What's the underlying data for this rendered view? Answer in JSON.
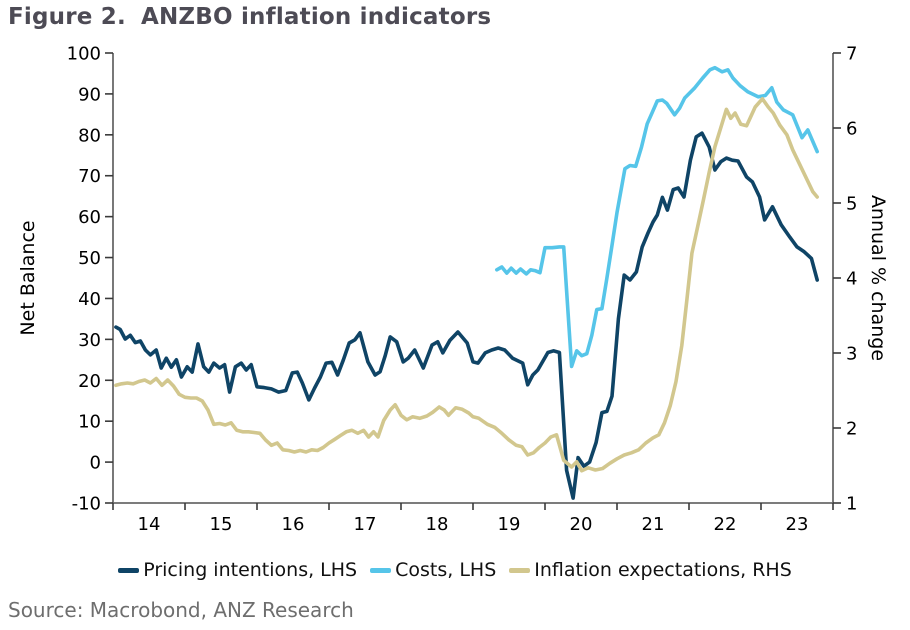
{
  "figure": {
    "label": "Figure 2.",
    "title": "ANZBO inflation indicators"
  },
  "source": {
    "text": "Source: Macrobond, ANZ Research"
  },
  "colors": {
    "title": "#4d4b55",
    "axis_line": "#6a6a6a",
    "tick_mark": "#3a3a3a",
    "tick_text": "#000000",
    "source_text": "#6e6e6e",
    "pricing_intentions": "#0f4466",
    "costs": "#56c5e9",
    "inflation_expectations": "#d2c78e"
  },
  "chart_data": {
    "type": "line",
    "title": "ANZBO inflation indicators",
    "grid": false,
    "legend_position": "bottom",
    "x_axis": {
      "range": [
        2014,
        2024
      ],
      "tick_labels": [
        "14",
        "15",
        "16",
        "17",
        "18",
        "19",
        "20",
        "21",
        "22",
        "23"
      ]
    },
    "y_left": {
      "label": "Net Balance",
      "range": [
        -10,
        100
      ],
      "ticks": [
        100,
        90,
        80,
        70,
        60,
        50,
        40,
        30,
        20,
        10,
        0,
        -10
      ]
    },
    "y_right": {
      "label": "Annual % change",
      "range": [
        1,
        7
      ],
      "ticks": [
        7,
        6,
        5,
        4,
        3,
        2,
        1
      ]
    },
    "series": [
      {
        "name": "Pricing intentions, LHS",
        "axis": "left",
        "color": "#0f4466",
        "points": [
          [
            2014.04,
            33
          ],
          [
            2014.1,
            32.4
          ],
          [
            2014.17,
            30.1
          ],
          [
            2014.24,
            31
          ],
          [
            2014.31,
            29.2
          ],
          [
            2014.38,
            29.6
          ],
          [
            2014.45,
            27.4
          ],
          [
            2014.52,
            26.2
          ],
          [
            2014.6,
            27.4
          ],
          [
            2014.67,
            23
          ],
          [
            2014.74,
            25.4
          ],
          [
            2014.81,
            23.2
          ],
          [
            2014.88,
            25
          ],
          [
            2014.95,
            20.8
          ],
          [
            2015.03,
            23.3
          ],
          [
            2015.1,
            22
          ],
          [
            2015.18,
            28.9
          ],
          [
            2015.26,
            23.3
          ],
          [
            2015.33,
            22
          ],
          [
            2015.4,
            24.2
          ],
          [
            2015.48,
            23
          ],
          [
            2015.55,
            23.8
          ],
          [
            2015.62,
            17.1
          ],
          [
            2015.7,
            23.3
          ],
          [
            2015.78,
            24.2
          ],
          [
            2015.85,
            22.5
          ],
          [
            2015.92,
            23.8
          ],
          [
            2016,
            18.4
          ],
          [
            2016.1,
            18.2
          ],
          [
            2016.2,
            17.9
          ],
          [
            2016.3,
            17.1
          ],
          [
            2016.4,
            17.5
          ],
          [
            2016.49,
            21.8
          ],
          [
            2016.56,
            22
          ],
          [
            2016.63,
            19.3
          ],
          [
            2016.72,
            15.2
          ],
          [
            2016.8,
            18.1
          ],
          [
            2016.88,
            20.8
          ],
          [
            2016.96,
            24.2
          ],
          [
            2017.04,
            24.4
          ],
          [
            2017.12,
            21.3
          ],
          [
            2017.2,
            25
          ],
          [
            2017.28,
            29.1
          ],
          [
            2017.36,
            29.9
          ],
          [
            2017.43,
            31.6
          ],
          [
            2017.54,
            24.5
          ],
          [
            2017.64,
            21.3
          ],
          [
            2017.71,
            22.1
          ],
          [
            2017.78,
            26
          ],
          [
            2017.85,
            30.6
          ],
          [
            2017.94,
            29.4
          ],
          [
            2018.03,
            24.5
          ],
          [
            2018.1,
            25.4
          ],
          [
            2018.19,
            27.4
          ],
          [
            2018.31,
            23
          ],
          [
            2018.43,
            28.6
          ],
          [
            2018.51,
            29.4
          ],
          [
            2018.58,
            26.7
          ],
          [
            2018.68,
            29.8
          ],
          [
            2018.79,
            31.8
          ],
          [
            2018.92,
            29.1
          ],
          [
            2019,
            24.5
          ],
          [
            2019.07,
            24.2
          ],
          [
            2019.17,
            26.7
          ],
          [
            2019.26,
            27.4
          ],
          [
            2019.35,
            27.9
          ],
          [
            2019.44,
            27.4
          ],
          [
            2019.55,
            25.4
          ],
          [
            2019.69,
            24.2
          ],
          [
            2019.76,
            18.9
          ],
          [
            2019.83,
            21.3
          ],
          [
            2019.9,
            22.5
          ],
          [
            2020.04,
            26.8
          ],
          [
            2020.12,
            27.2
          ],
          [
            2020.2,
            26.8
          ],
          [
            2020.3,
            -2
          ],
          [
            2020.39,
            -8.8
          ],
          [
            2020.46,
            1.1
          ],
          [
            2020.54,
            -1
          ],
          [
            2020.62,
            0
          ],
          [
            2020.71,
            4.8
          ],
          [
            2020.79,
            12.1
          ],
          [
            2020.86,
            12.4
          ],
          [
            2020.93,
            16.1
          ],
          [
            2021.02,
            35
          ],
          [
            2021.1,
            45.7
          ],
          [
            2021.18,
            44.5
          ],
          [
            2021.27,
            46.5
          ],
          [
            2021.35,
            52.6
          ],
          [
            2021.43,
            56
          ],
          [
            2021.5,
            58.7
          ],
          [
            2021.56,
            60.4
          ],
          [
            2021.63,
            64.7
          ],
          [
            2021.7,
            61.6
          ],
          [
            2021.78,
            66.6
          ],
          [
            2021.85,
            67
          ],
          [
            2021.93,
            64.8
          ],
          [
            2022.02,
            73.8
          ],
          [
            2022.1,
            79.5
          ],
          [
            2022.18,
            80.4
          ],
          [
            2022.28,
            77
          ],
          [
            2022.36,
            71.4
          ],
          [
            2022.44,
            73.4
          ],
          [
            2022.52,
            74.3
          ],
          [
            2022.6,
            73.8
          ],
          [
            2022.68,
            73.6
          ],
          [
            2022.8,
            69.7
          ],
          [
            2022.88,
            68.5
          ],
          [
            2022.98,
            64.8
          ],
          [
            2023.05,
            59.2
          ],
          [
            2023.16,
            62.4
          ],
          [
            2023.28,
            58
          ],
          [
            2023.4,
            55
          ],
          [
            2023.5,
            52.6
          ],
          [
            2023.6,
            51.4
          ],
          [
            2023.7,
            49.8
          ],
          [
            2023.78,
            44.5
          ]
        ]
      },
      {
        "name": "Costs, LHS",
        "axis": "left",
        "color": "#56c5e9",
        "points": [
          [
            2019.33,
            47
          ],
          [
            2019.4,
            47.7
          ],
          [
            2019.47,
            46.2
          ],
          [
            2019.53,
            47.4
          ],
          [
            2019.6,
            46.2
          ],
          [
            2019.66,
            47.2
          ],
          [
            2019.74,
            46
          ],
          [
            2019.8,
            47
          ],
          [
            2019.86,
            46.8
          ],
          [
            2019.93,
            46.3
          ],
          [
            2020,
            52.4
          ],
          [
            2020.1,
            52.4
          ],
          [
            2020.2,
            52.6
          ],
          [
            2020.26,
            52.6
          ],
          [
            2020.37,
            23.4
          ],
          [
            2020.44,
            27.2
          ],
          [
            2020.51,
            26
          ],
          [
            2020.58,
            26.5
          ],
          [
            2020.65,
            31
          ],
          [
            2020.72,
            37.3
          ],
          [
            2020.79,
            37.5
          ],
          [
            2020.86,
            45
          ],
          [
            2020.93,
            53
          ],
          [
            2021,
            61
          ],
          [
            2021.11,
            71.7
          ],
          [
            2021.18,
            72.5
          ],
          [
            2021.26,
            72.3
          ],
          [
            2021.34,
            77
          ],
          [
            2021.42,
            82.7
          ],
          [
            2021.49,
            85.5
          ],
          [
            2021.56,
            88.3
          ],
          [
            2021.63,
            88.5
          ],
          [
            2021.69,
            87.7
          ],
          [
            2021.8,
            84.9
          ],
          [
            2021.87,
            86.5
          ],
          [
            2021.94,
            89
          ],
          [
            2022.08,
            91.5
          ],
          [
            2022.19,
            93.9
          ],
          [
            2022.29,
            95.9
          ],
          [
            2022.36,
            96.4
          ],
          [
            2022.46,
            95.4
          ],
          [
            2022.54,
            95.9
          ],
          [
            2022.61,
            93.9
          ],
          [
            2022.71,
            92
          ],
          [
            2022.82,
            90.5
          ],
          [
            2022.96,
            89.3
          ],
          [
            2023.06,
            89.6
          ],
          [
            2023.15,
            91.5
          ],
          [
            2023.22,
            88
          ],
          [
            2023.31,
            86.1
          ],
          [
            2023.44,
            84.9
          ],
          [
            2023.57,
            79.3
          ],
          [
            2023.65,
            81.2
          ],
          [
            2023.78,
            75.9
          ]
        ]
      },
      {
        "name": "Inflation expectations, RHS",
        "axis": "right",
        "color": "#d2c78e",
        "points": [
          [
            2014.04,
            2.57
          ],
          [
            2014.12,
            2.59
          ],
          [
            2014.2,
            2.6
          ],
          [
            2014.28,
            2.59
          ],
          [
            2014.36,
            2.62
          ],
          [
            2014.44,
            2.64
          ],
          [
            2014.52,
            2.6
          ],
          [
            2014.6,
            2.66
          ],
          [
            2014.68,
            2.57
          ],
          [
            2014.76,
            2.64
          ],
          [
            2014.84,
            2.56
          ],
          [
            2014.92,
            2.45
          ],
          [
            2015,
            2.41
          ],
          [
            2015.08,
            2.4
          ],
          [
            2015.16,
            2.4
          ],
          [
            2015.24,
            2.36
          ],
          [
            2015.32,
            2.24
          ],
          [
            2015.4,
            2.05
          ],
          [
            2015.48,
            2.06
          ],
          [
            2015.56,
            2.04
          ],
          [
            2015.64,
            2.07
          ],
          [
            2015.72,
            1.97
          ],
          [
            2015.8,
            1.95
          ],
          [
            2015.88,
            1.95
          ],
          [
            2015.96,
            1.94
          ],
          [
            2016.04,
            1.93
          ],
          [
            2016.12,
            1.84
          ],
          [
            2016.2,
            1.77
          ],
          [
            2016.28,
            1.8
          ],
          [
            2016.36,
            1.71
          ],
          [
            2016.44,
            1.7
          ],
          [
            2016.52,
            1.68
          ],
          [
            2016.6,
            1.7
          ],
          [
            2016.68,
            1.68
          ],
          [
            2016.76,
            1.71
          ],
          [
            2016.84,
            1.7
          ],
          [
            2016.92,
            1.74
          ],
          [
            2017,
            1.8
          ],
          [
            2017.08,
            1.85
          ],
          [
            2017.16,
            1.9
          ],
          [
            2017.24,
            1.95
          ],
          [
            2017.32,
            1.97
          ],
          [
            2017.4,
            1.93
          ],
          [
            2017.48,
            1.97
          ],
          [
            2017.55,
            1.88
          ],
          [
            2017.62,
            1.95
          ],
          [
            2017.68,
            1.88
          ],
          [
            2017.76,
            2.1
          ],
          [
            2017.85,
            2.24
          ],
          [
            2017.92,
            2.31
          ],
          [
            2018,
            2.17
          ],
          [
            2018.08,
            2.11
          ],
          [
            2018.16,
            2.15
          ],
          [
            2018.26,
            2.13
          ],
          [
            2018.36,
            2.16
          ],
          [
            2018.44,
            2.21
          ],
          [
            2018.53,
            2.28
          ],
          [
            2018.6,
            2.24
          ],
          [
            2018.66,
            2.17
          ],
          [
            2018.76,
            2.27
          ],
          [
            2018.85,
            2.25
          ],
          [
            2018.94,
            2.2
          ],
          [
            2019,
            2.15
          ],
          [
            2019.08,
            2.13
          ],
          [
            2019.2,
            2.05
          ],
          [
            2019.3,
            2.01
          ],
          [
            2019.4,
            1.93
          ],
          [
            2019.5,
            1.84
          ],
          [
            2019.6,
            1.77
          ],
          [
            2019.68,
            1.75
          ],
          [
            2019.76,
            1.64
          ],
          [
            2019.84,
            1.67
          ],
          [
            2019.92,
            1.74
          ],
          [
            2020,
            1.8
          ],
          [
            2020.08,
            1.88
          ],
          [
            2020.16,
            1.91
          ],
          [
            2020.26,
            1.57
          ],
          [
            2020.37,
            1.48
          ],
          [
            2020.44,
            1.55
          ],
          [
            2020.51,
            1.43
          ],
          [
            2020.6,
            1.47
          ],
          [
            2020.7,
            1.44
          ],
          [
            2020.8,
            1.46
          ],
          [
            2020.9,
            1.53
          ],
          [
            2021,
            1.59
          ],
          [
            2021.1,
            1.64
          ],
          [
            2021.2,
            1.67
          ],
          [
            2021.3,
            1.71
          ],
          [
            2021.4,
            1.8
          ],
          [
            2021.5,
            1.87
          ],
          [
            2021.58,
            1.91
          ],
          [
            2021.66,
            2.07
          ],
          [
            2021.74,
            2.3
          ],
          [
            2021.82,
            2.62
          ],
          [
            2021.9,
            3.1
          ],
          [
            2021.97,
            3.7
          ],
          [
            2022.04,
            4.33
          ],
          [
            2022.12,
            4.68
          ],
          [
            2022.2,
            5.04
          ],
          [
            2022.28,
            5.41
          ],
          [
            2022.36,
            5.75
          ],
          [
            2022.44,
            6
          ],
          [
            2022.52,
            6.25
          ],
          [
            2022.58,
            6.13
          ],
          [
            2022.64,
            6.2
          ],
          [
            2022.72,
            6.05
          ],
          [
            2022.8,
            6.03
          ],
          [
            2022.92,
            6.28
          ],
          [
            2023.02,
            6.39
          ],
          [
            2023.1,
            6.28
          ],
          [
            2023.17,
            6.2
          ],
          [
            2023.26,
            6.04
          ],
          [
            2023.36,
            5.91
          ],
          [
            2023.44,
            5.71
          ],
          [
            2023.54,
            5.51
          ],
          [
            2023.64,
            5.31
          ],
          [
            2023.72,
            5.15
          ],
          [
            2023.78,
            5.08
          ]
        ]
      }
    ]
  }
}
